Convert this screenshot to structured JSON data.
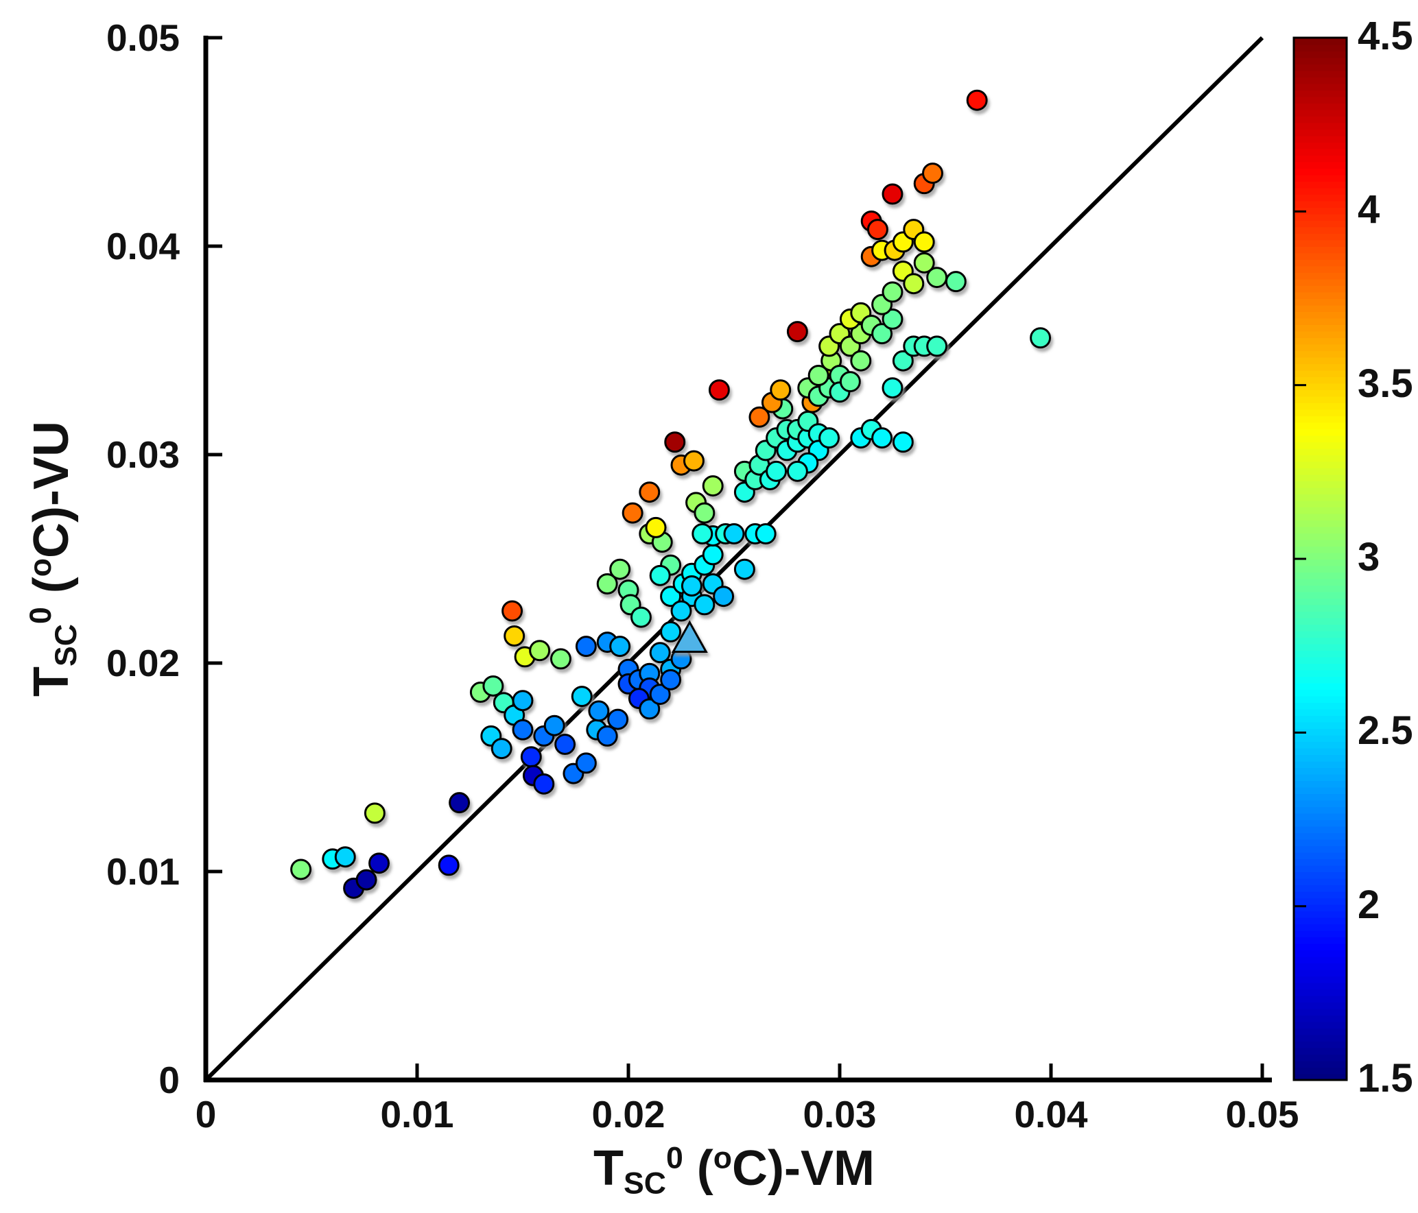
{
  "figure": {
    "title": "",
    "background": "#ffffff"
  },
  "chart_data": {
    "type": "scatter",
    "title": "",
    "xlabel_text": "T_SC^0 (oC)-VM",
    "ylabel_text": "T_SC^0 (oC)-VU",
    "xlabel_segments": [
      {
        "t": "T"
      },
      {
        "t": "SC",
        "s": "sub"
      },
      {
        "t": "0",
        "s": "sup"
      },
      {
        "t": " ("
      },
      {
        "t": "o",
        "s": "sup"
      },
      {
        "t": "C)-VM"
      }
    ],
    "ylabel_segments": [
      {
        "t": "T"
      },
      {
        "t": "SC",
        "s": "sub"
      },
      {
        "t": "0",
        "s": "sup"
      },
      {
        "t": " ("
      },
      {
        "t": "o",
        "s": "sup"
      },
      {
        "t": "C)-VU"
      }
    ],
    "xlim": [
      0,
      0.05
    ],
    "ylim": [
      0,
      0.05
    ],
    "x_ticks": [
      0,
      0.01,
      0.02,
      0.03,
      0.04,
      0.05
    ],
    "x_tick_labels": [
      "0",
      "0.01",
      "0.02",
      "0.03",
      "0.04",
      "0.05"
    ],
    "y_ticks": [
      0,
      0.01,
      0.02,
      0.03,
      0.04,
      0.05
    ],
    "y_tick_labels": [
      "0",
      "0.01",
      "0.02",
      "0.03",
      "0.04",
      "0.05"
    ],
    "grid": false,
    "identity_line": {
      "from": [
        0,
        0
      ],
      "to": [
        0.05,
        0.05
      ],
      "color": "#000000",
      "width": 6
    },
    "colorbar": {
      "colormap": "jet",
      "min": 1.5,
      "max": 4.5,
      "ticks": [
        1.5,
        2,
        2.5,
        3,
        3.5,
        4,
        4.5
      ],
      "tick_labels": [
        "1.5",
        "2",
        "2.5",
        "3",
        "3.5",
        "4",
        "4.5"
      ]
    },
    "mean_marker": {
      "shape": "triangle",
      "x": 0.0229,
      "y": 0.0211,
      "color": "#4FB3E8"
    },
    "points_format": [
      "x",
      "y",
      "color_value"
    ],
    "points": [
      [
        0.0045,
        0.0101,
        3.0
      ],
      [
        0.006,
        0.0106,
        2.6
      ],
      [
        0.0066,
        0.0107,
        2.5
      ],
      [
        0.007,
        0.0092,
        1.6
      ],
      [
        0.0076,
        0.0096,
        1.6
      ],
      [
        0.0082,
        0.0104,
        1.7
      ],
      [
        0.008,
        0.0128,
        3.2
      ],
      [
        0.0115,
        0.0103,
        1.9
      ],
      [
        0.012,
        0.0133,
        1.6
      ],
      [
        0.013,
        0.0186,
        3.0
      ],
      [
        0.0136,
        0.0189,
        2.9
      ],
      [
        0.0141,
        0.0181,
        2.8
      ],
      [
        0.0135,
        0.0165,
        2.5
      ],
      [
        0.014,
        0.0159,
        2.4
      ],
      [
        0.0146,
        0.0175,
        2.5
      ],
      [
        0.015,
        0.0182,
        2.4
      ],
      [
        0.015,
        0.0168,
        2.2
      ],
      [
        0.0154,
        0.0155,
        2.0
      ],
      [
        0.0155,
        0.0146,
        1.7
      ],
      [
        0.016,
        0.0142,
        2.0
      ],
      [
        0.016,
        0.0165,
        2.2
      ],
      [
        0.0165,
        0.017,
        2.3
      ],
      [
        0.017,
        0.0161,
        2.1
      ],
      [
        0.0174,
        0.0147,
        2.2
      ],
      [
        0.018,
        0.0152,
        2.2
      ],
      [
        0.0145,
        0.0225,
        3.9
      ],
      [
        0.0146,
        0.0213,
        3.5
      ],
      [
        0.0151,
        0.0203,
        3.3
      ],
      [
        0.0158,
        0.0206,
        3.1
      ],
      [
        0.0168,
        0.0202,
        3.0
      ],
      [
        0.0178,
        0.0184,
        2.5
      ],
      [
        0.0185,
        0.0168,
        2.4
      ],
      [
        0.0195,
        0.0173,
        2.2
      ],
      [
        0.018,
        0.0208,
        2.2
      ],
      [
        0.0186,
        0.0177,
        2.3
      ],
      [
        0.019,
        0.0165,
        2.2
      ],
      [
        0.019,
        0.021,
        2.3
      ],
      [
        0.0196,
        0.0208,
        2.4
      ],
      [
        0.02,
        0.0197,
        2.2
      ],
      [
        0.02,
        0.019,
        2.1
      ],
      [
        0.0205,
        0.0192,
        2.2
      ],
      [
        0.021,
        0.0195,
        2.3
      ],
      [
        0.021,
        0.0188,
        2.1
      ],
      [
        0.0205,
        0.0183,
        2.0
      ],
      [
        0.021,
        0.0178,
        2.3
      ],
      [
        0.0215,
        0.0185,
        2.2
      ],
      [
        0.022,
        0.0197,
        2.4
      ],
      [
        0.0215,
        0.0205,
        2.4
      ],
      [
        0.022,
        0.0215,
        2.5
      ],
      [
        0.0225,
        0.0202,
        2.3
      ],
      [
        0.022,
        0.0192,
        2.2
      ],
      [
        0.019,
        0.0238,
        3.0
      ],
      [
        0.0196,
        0.0245,
        3.0
      ],
      [
        0.02,
        0.0235,
        2.9
      ],
      [
        0.0201,
        0.0228,
        2.9
      ],
      [
        0.0206,
        0.0222,
        2.8
      ],
      [
        0.021,
        0.0262,
        3.1
      ],
      [
        0.0216,
        0.0258,
        3.0
      ],
      [
        0.022,
        0.0247,
        2.9
      ],
      [
        0.0215,
        0.0242,
        2.7
      ],
      [
        0.022,
        0.0232,
        2.6
      ],
      [
        0.0226,
        0.0238,
        2.6
      ],
      [
        0.023,
        0.0243,
        2.6
      ],
      [
        0.023,
        0.0232,
        2.5
      ],
      [
        0.0236,
        0.0247,
        2.6
      ],
      [
        0.024,
        0.0252,
        2.6
      ],
      [
        0.024,
        0.0261,
        2.6
      ],
      [
        0.0246,
        0.0262,
        2.7
      ],
      [
        0.025,
        0.0262,
        2.5
      ],
      [
        0.0235,
        0.0262,
        2.7
      ],
      [
        0.0255,
        0.0245,
        2.5
      ],
      [
        0.026,
        0.0262,
        2.6
      ],
      [
        0.0265,
        0.0262,
        2.6
      ],
      [
        0.0202,
        0.0272,
        3.8
      ],
      [
        0.021,
        0.0282,
        3.8
      ],
      [
        0.0225,
        0.0295,
        3.7
      ],
      [
        0.0231,
        0.0297,
        3.6
      ],
      [
        0.0213,
        0.0265,
        3.4
      ],
      [
        0.0232,
        0.0277,
        3.1
      ],
      [
        0.0236,
        0.0272,
        3.0
      ],
      [
        0.024,
        0.0285,
        3.1
      ],
      [
        0.0222,
        0.0306,
        4.4
      ],
      [
        0.0243,
        0.0331,
        4.2
      ],
      [
        0.028,
        0.0359,
        4.3
      ],
      [
        0.0225,
        0.0225,
        2.5
      ],
      [
        0.023,
        0.0237,
        2.5
      ],
      [
        0.0236,
        0.0228,
        2.5
      ],
      [
        0.024,
        0.0238,
        2.5
      ],
      [
        0.0245,
        0.0232,
        2.4
      ],
      [
        0.0255,
        0.0282,
        2.7
      ],
      [
        0.0255,
        0.0292,
        2.9
      ],
      [
        0.026,
        0.0288,
        2.8
      ],
      [
        0.0262,
        0.0295,
        2.8
      ],
      [
        0.0267,
        0.0288,
        2.7
      ],
      [
        0.027,
        0.0292,
        2.7
      ],
      [
        0.0265,
        0.0302,
        2.8
      ],
      [
        0.027,
        0.0308,
        2.8
      ],
      [
        0.0275,
        0.0302,
        2.7
      ],
      [
        0.0275,
        0.0312,
        2.8
      ],
      [
        0.028,
        0.0306,
        2.7
      ],
      [
        0.028,
        0.0312,
        2.8
      ],
      [
        0.0285,
        0.0308,
        2.7
      ],
      [
        0.0285,
        0.0316,
        2.8
      ],
      [
        0.029,
        0.031,
        2.7
      ],
      [
        0.029,
        0.0302,
        2.6
      ],
      [
        0.0295,
        0.0308,
        2.7
      ],
      [
        0.0285,
        0.0296,
        2.6
      ],
      [
        0.0273,
        0.0322,
        2.9
      ],
      [
        0.028,
        0.0292,
        2.7
      ],
      [
        0.0262,
        0.0318,
        3.8
      ],
      [
        0.0268,
        0.0325,
        3.7
      ],
      [
        0.0272,
        0.0331,
        3.6
      ],
      [
        0.0287,
        0.0325,
        3.7
      ],
      [
        0.0297,
        0.0338,
        3.3
      ],
      [
        0.0285,
        0.0332,
        3.0
      ],
      [
        0.029,
        0.0328,
        2.9
      ],
      [
        0.0295,
        0.0332,
        2.9
      ],
      [
        0.029,
        0.0338,
        3.0
      ],
      [
        0.0296,
        0.0345,
        3.1
      ],
      [
        0.03,
        0.0338,
        2.9
      ],
      [
        0.03,
        0.033,
        2.8
      ],
      [
        0.0305,
        0.0335,
        2.9
      ],
      [
        0.0295,
        0.0352,
        3.2
      ],
      [
        0.03,
        0.0358,
        3.2
      ],
      [
        0.0305,
        0.0352,
        3.1
      ],
      [
        0.031,
        0.0345,
        3.0
      ],
      [
        0.031,
        0.0358,
        3.1
      ],
      [
        0.0305,
        0.0365,
        3.3
      ],
      [
        0.031,
        0.0368,
        3.2
      ],
      [
        0.0315,
        0.0362,
        3.0
      ],
      [
        0.032,
        0.0358,
        2.9
      ],
      [
        0.0325,
        0.0365,
        2.9
      ],
      [
        0.032,
        0.0372,
        3.0
      ],
      [
        0.0325,
        0.0378,
        3.0
      ],
      [
        0.0355,
        0.0383,
        2.9
      ],
      [
        0.0315,
        0.0395,
        3.8
      ],
      [
        0.032,
        0.0398,
        3.4
      ],
      [
        0.0326,
        0.0398,
        3.5
      ],
      [
        0.033,
        0.0402,
        3.4
      ],
      [
        0.0335,
        0.0408,
        3.5
      ],
      [
        0.034,
        0.0402,
        3.4
      ],
      [
        0.033,
        0.0388,
        3.3
      ],
      [
        0.0335,
        0.0382,
        3.2
      ],
      [
        0.034,
        0.0392,
        3.1
      ],
      [
        0.0346,
        0.0385,
        3.0
      ],
      [
        0.0315,
        0.0412,
        4.1
      ],
      [
        0.0318,
        0.0408,
        4.0
      ],
      [
        0.0325,
        0.0425,
        4.2
      ],
      [
        0.034,
        0.043,
        3.9
      ],
      [
        0.0344,
        0.0435,
        3.8
      ],
      [
        0.0365,
        0.047,
        4.1
      ],
      [
        0.031,
        0.0308,
        2.6
      ],
      [
        0.0315,
        0.0312,
        2.7
      ],
      [
        0.032,
        0.0308,
        2.6
      ],
      [
        0.033,
        0.0306,
        2.6
      ],
      [
        0.0325,
        0.0332,
        2.7
      ],
      [
        0.033,
        0.0345,
        2.8
      ],
      [
        0.0335,
        0.0352,
        2.8
      ],
      [
        0.034,
        0.0352,
        2.8
      ],
      [
        0.0346,
        0.0352,
        2.8
      ],
      [
        0.0395,
        0.0356,
        2.8
      ]
    ]
  }
}
